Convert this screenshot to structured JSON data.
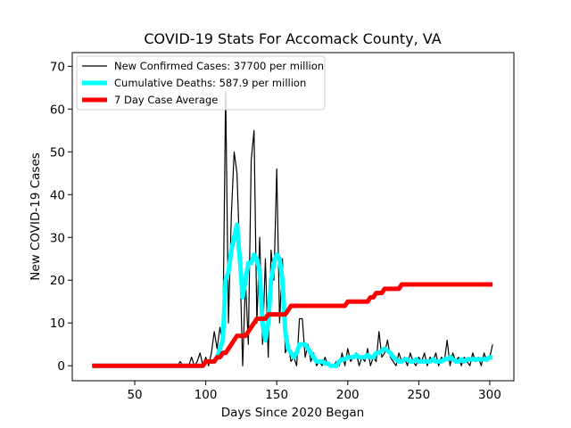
{
  "chart_data": {
    "type": "line",
    "title": "COVID-19 Stats For Accomack County, VA",
    "x_label": "Days Since 2020 Began",
    "y_label": "New COVID-19 Cases",
    "x": [
      20,
      22,
      24,
      26,
      28,
      30,
      32,
      34,
      36,
      38,
      40,
      42,
      44,
      46,
      48,
      50,
      52,
      54,
      56,
      58,
      60,
      62,
      64,
      66,
      68,
      70,
      72,
      74,
      76,
      78,
      80,
      82,
      84,
      86,
      88,
      90,
      92,
      94,
      96,
      98,
      100,
      102,
      104,
      106,
      108,
      110,
      112,
      114,
      116,
      118,
      120,
      122,
      124,
      126,
      128,
      130,
      132,
      134,
      136,
      138,
      140,
      142,
      144,
      146,
      148,
      150,
      152,
      154,
      156,
      158,
      160,
      162,
      164,
      166,
      168,
      170,
      172,
      174,
      176,
      178,
      180,
      182,
      184,
      186,
      188,
      190,
      192,
      194,
      196,
      198,
      200,
      202,
      204,
      206,
      208,
      210,
      212,
      214,
      216,
      218,
      220,
      222,
      224,
      226,
      228,
      230,
      232,
      234,
      236,
      238,
      240,
      242,
      244,
      246,
      248,
      250,
      252,
      254,
      256,
      258,
      260,
      262,
      264,
      266,
      268,
      270,
      272,
      274,
      276,
      278,
      280,
      282,
      284,
      286,
      288,
      290,
      292,
      294,
      296,
      298,
      300,
      302
    ],
    "series": [
      {
        "name": "New Confirmed Cases: 37700 per million",
        "color": "#000000",
        "values": [
          0,
          0,
          0,
          0,
          0,
          0,
          0,
          0,
          0,
          0,
          0,
          0,
          0,
          0,
          0,
          0,
          0,
          0,
          0,
          0,
          0,
          0,
          0,
          0,
          0,
          0,
          0,
          0,
          0,
          0,
          0,
          1,
          0,
          0,
          0,
          2,
          0,
          1,
          3,
          0,
          2,
          0,
          3,
          8,
          4,
          9,
          5,
          64,
          10,
          35,
          50,
          45,
          25,
          0,
          20,
          5,
          48,
          55,
          10,
          30,
          5,
          25,
          2,
          27,
          20,
          46,
          10,
          25,
          3,
          5,
          1,
          2,
          0,
          11,
          11,
          2,
          5,
          1,
          3,
          0,
          1,
          0,
          2,
          0,
          0,
          0,
          1,
          0,
          3,
          0,
          4,
          1,
          2,
          3,
          0,
          2,
          1,
          4,
          0,
          2,
          1,
          8,
          2,
          3,
          6,
          2,
          1,
          0,
          3,
          1,
          2,
          0,
          3,
          1,
          0,
          2,
          1,
          3,
          0,
          2,
          1,
          3,
          0,
          2,
          1,
          6,
          0,
          3,
          1,
          2,
          0,
          2,
          1,
          0,
          3,
          1,
          2,
          0,
          3,
          1,
          2,
          5
        ]
      },
      {
        "name": "Cumulative Deaths: 587.9 per million",
        "color": "#00ffff",
        "values": [
          0,
          0,
          0,
          0,
          0,
          0,
          0,
          0,
          0,
          0,
          0,
          0,
          0,
          0,
          0,
          0,
          0,
          0,
          0,
          0,
          0,
          0,
          0,
          0,
          0,
          0,
          0,
          0,
          0,
          0,
          0,
          0,
          0,
          0,
          0,
          0,
          0,
          0,
          0,
          0,
          1,
          1,
          1,
          1,
          2,
          4,
          6,
          20,
          22,
          27,
          30,
          33,
          25,
          16,
          20,
          24,
          24,
          26,
          25,
          22,
          10,
          6,
          10,
          20,
          24,
          26,
          25,
          20,
          8,
          4,
          3,
          2,
          3,
          5,
          5,
          5,
          4,
          3,
          2,
          1,
          1,
          1,
          0.5,
          0.5,
          0,
          0,
          0,
          1,
          1.5,
          1.5,
          2,
          2,
          2,
          2.5,
          2,
          2,
          2,
          2.5,
          2,
          2,
          3,
          3,
          3.5,
          4,
          3.5,
          3,
          2,
          1.5,
          1,
          1,
          1.5,
          1.5,
          1,
          1,
          1.5,
          1,
          1,
          1,
          1,
          1,
          1.5,
          1,
          1,
          1,
          1.5,
          1.5,
          2,
          1.5,
          1,
          1,
          1.5,
          1,
          1.5,
          1.5,
          1.5,
          1.5,
          1.5,
          1.5,
          1.5,
          1.5,
          2,
          2
        ]
      },
      {
        "name": "7 Day Case Average",
        "color": "#ff0000",
        "values": [
          0,
          0,
          0,
          0,
          0,
          0,
          0,
          0,
          0,
          0,
          0,
          0,
          0,
          0,
          0,
          0,
          0,
          0,
          0,
          0,
          0,
          0,
          0,
          0,
          0,
          0,
          0,
          0,
          0,
          0,
          0,
          0,
          0,
          0,
          0,
          0,
          0,
          0,
          0,
          0,
          1,
          1,
          1,
          1,
          2,
          2,
          3,
          3,
          4,
          5,
          6,
          7,
          7,
          7,
          7,
          8,
          9,
          10,
          11,
          11,
          11,
          11,
          12,
          12,
          12,
          12,
          12,
          12,
          12,
          13,
          14,
          14,
          14,
          14,
          14,
          14,
          14,
          14,
          14,
          14,
          14,
          14,
          14,
          14,
          14,
          14,
          14,
          14,
          14,
          14,
          15,
          15,
          15,
          15,
          15,
          15,
          15,
          15,
          16,
          16,
          17,
          17,
          17,
          18,
          18,
          18,
          18,
          18,
          18,
          19,
          19,
          19,
          19,
          19,
          19,
          19,
          19,
          19,
          19,
          19,
          19,
          19,
          19,
          19,
          19,
          19,
          19,
          19,
          19,
          19,
          19,
          19,
          19,
          19,
          19,
          19,
          19,
          19,
          19,
          19,
          19,
          19
        ]
      }
    ],
    "xlim": [
      6,
      317
    ],
    "ylim": [
      -3.5,
      73.2
    ],
    "xticks": [
      50,
      100,
      150,
      200,
      250,
      300
    ],
    "yticks": [
      0,
      10,
      20,
      30,
      40,
      50,
      60,
      70
    ],
    "legend": "upper-left"
  }
}
